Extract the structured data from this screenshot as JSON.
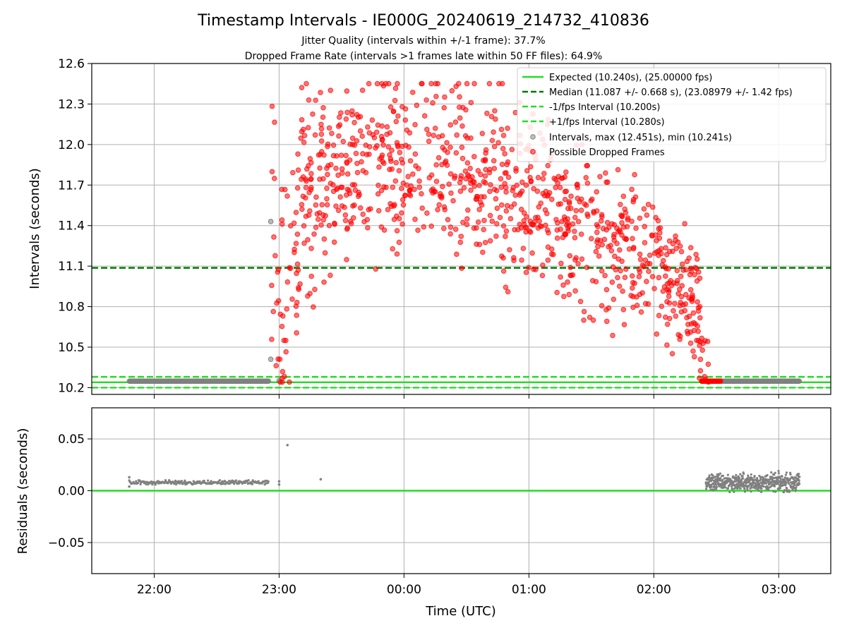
{
  "figure": {
    "title": "Timestamp Intervals - IE000G_20240619_214732_410836",
    "subtitle_1": "Jitter Quality (intervals within +/-1 frame): 37.7%",
    "subtitle_2": "Dropped Frame Rate (intervals >1 frames late within 50 FF files): 64.9%"
  },
  "chart_data": [
    {
      "type": "scatter",
      "panel": "intervals",
      "ylabel": "Intervals (seconds)",
      "xlabel": "",
      "xlim": [
        "21:30",
        "03:25"
      ],
      "ylim": [
        10.15,
        12.6
      ],
      "yticks": [
        "10.2",
        "10.5",
        "10.8",
        "11.1",
        "11.4",
        "11.7",
        "12.0",
        "12.3",
        "12.6"
      ],
      "grid": true,
      "legend_position": "top-right",
      "reference_lines": [
        {
          "label": "Expected (10.240s), (25.00000 fps)",
          "y": 10.24,
          "style": "solid",
          "color": "#22dd22"
        },
        {
          "label": "Median (11.087 +/- 0.668 s), (23.08979 +/- 1.42 fps)",
          "y": 11.087,
          "style": "dashed",
          "color": "#007700"
        },
        {
          "label": "-1/fps Interval (10.200s)",
          "y": 10.2,
          "style": "dashed",
          "color": "#22dd22"
        },
        {
          "label": "+1/fps Interval (10.280s)",
          "y": 10.28,
          "style": "dashed",
          "color": "#22dd22"
        }
      ],
      "series": [
        {
          "name": "Intervals, max (12.451s), min (10.241s)",
          "color": "#808080",
          "runs": [
            {
              "x_start": "21:48",
              "x_end": "22:55",
              "y": 10.248
            },
            {
              "x_start": "02:32",
              "x_end": "03:10",
              "y": 10.248
            }
          ],
          "points": [
            {
              "x": "22:56",
              "y": 11.43
            },
            {
              "x": "22:56",
              "y": 10.41
            },
            {
              "x": "23:00",
              "y": 10.25
            }
          ]
        },
        {
          "name": "Possible Dropped Frames",
          "color": "#ff0000",
          "x_range": [
            "22:55",
            "02:32"
          ],
          "y_range": [
            10.241,
            12.451
          ],
          "profile_x": [
            "22:57",
            "23:00",
            "23:05",
            "23:10",
            "23:20",
            "23:30",
            "23:45",
            "00:00",
            "00:15",
            "00:30",
            "00:45",
            "01:00",
            "01:15",
            "01:30",
            "01:45",
            "02:00",
            "02:10",
            "02:18",
            "02:22",
            "02:24",
            "02:27"
          ],
          "profile_mean": [
            11.5,
            10.8,
            10.8,
            11.6,
            11.7,
            11.8,
            11.8,
            11.85,
            11.85,
            11.8,
            11.75,
            11.55,
            11.5,
            11.3,
            11.2,
            11.15,
            11.0,
            10.85,
            10.6,
            10.45,
            10.3
          ],
          "profile_spread": [
            0.55,
            0.45,
            0.6,
            0.45,
            0.35,
            0.3,
            0.3,
            0.32,
            0.33,
            0.33,
            0.3,
            0.3,
            0.3,
            0.28,
            0.26,
            0.25,
            0.25,
            0.25,
            0.25,
            0.18,
            0.1
          ],
          "late_cluster": {
            "x_start": "02:23",
            "x_end": "02:32",
            "y": 10.248
          }
        }
      ]
    },
    {
      "type": "scatter",
      "panel": "residuals",
      "ylabel": "Residuals (seconds)",
      "xlabel": "Time (UTC)",
      "xlim": [
        "21:30",
        "03:25"
      ],
      "ylim": [
        -0.08,
        0.08
      ],
      "yticks": [
        "−0.05",
        "0.00",
        "0.05"
      ],
      "xticks": [
        "22:00",
        "23:00",
        "00:00",
        "01:00",
        "02:00",
        "03:00"
      ],
      "grid": true,
      "reference_lines": [
        {
          "y": 0.0,
          "style": "solid",
          "color": "#22dd22"
        }
      ],
      "series": [
        {
          "color": "#808080",
          "runs": [
            {
              "x_start": "21:48",
              "x_end": "22:55",
              "y": 0.008,
              "spread": 0.001
            },
            {
              "x_start": "02:25",
              "x_end": "03:10",
              "y": 0.008,
              "spread": 0.004
            }
          ],
          "points": [
            {
              "x": "21:48",
              "y": 0.013
            },
            {
              "x": "21:48",
              "y": 0.004
            },
            {
              "x": "23:00",
              "y": 0.006
            },
            {
              "x": "23:00",
              "y": 0.009
            },
            {
              "x": "23:04",
              "y": 0.044
            },
            {
              "x": "23:20",
              "y": 0.011
            }
          ]
        }
      ]
    }
  ],
  "colors": {
    "grid": "#b0b0b0",
    "axes": "#000000",
    "expected": "#22dd22",
    "median": "#007700",
    "intervals": "#808080",
    "dropped": "#ff0000"
  }
}
